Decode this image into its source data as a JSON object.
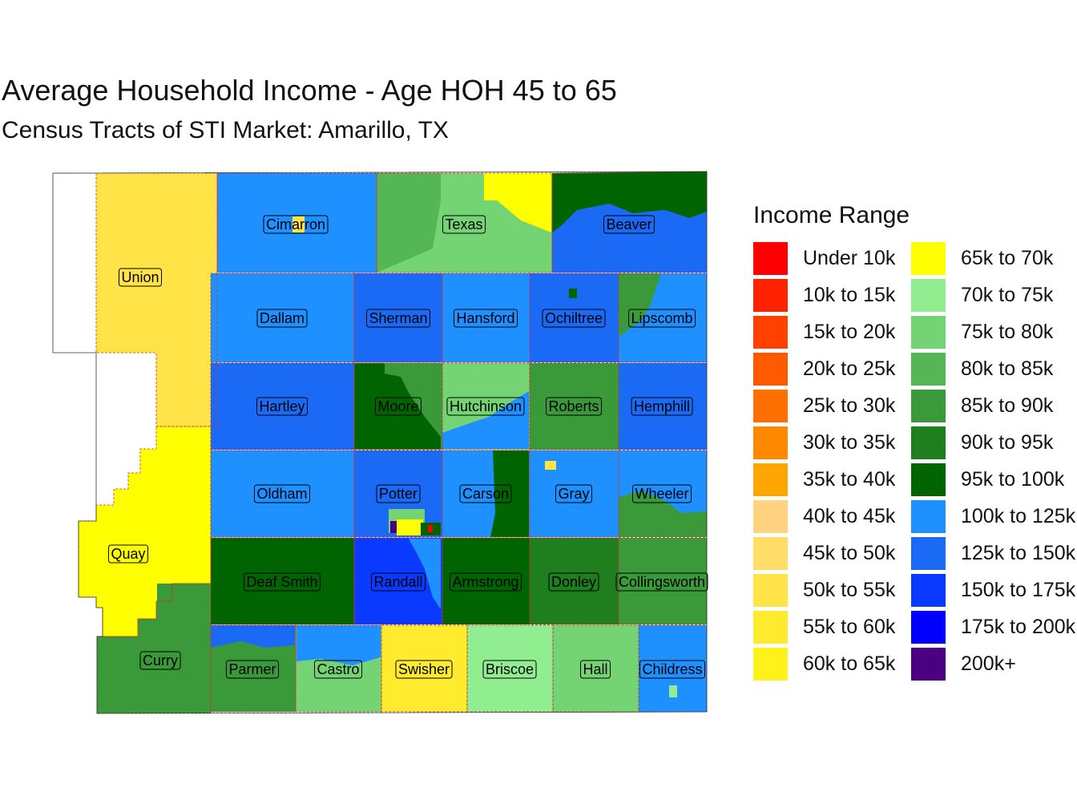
{
  "title": "Average Household Income - Age HOH 45 to 65",
  "subtitle": "Census Tracts of STI Market: Amarillo, TX",
  "legend": {
    "title": "Income Range",
    "items": [
      {
        "label": "Under 10k",
        "color": "#FF0000"
      },
      {
        "label": "10k to 15k",
        "color": "#FF2200"
      },
      {
        "label": "15k to 20k",
        "color": "#FF4000"
      },
      {
        "label": "20k to 25k",
        "color": "#FF5A00"
      },
      {
        "label": "25k to 30k",
        "color": "#FF7000"
      },
      {
        "label": "30k to 35k",
        "color": "#FF8800"
      },
      {
        "label": "35k to 40k",
        "color": "#FFA500"
      },
      {
        "label": "40k to 45k",
        "color": "#FFD37F"
      },
      {
        "label": "45k to 50k",
        "color": "#FFDD66"
      },
      {
        "label": "50k to 55k",
        "color": "#FFE347"
      },
      {
        "label": "55k to 60k",
        "color": "#FFEB2E"
      },
      {
        "label": "60k to 65k",
        "color": "#FFF21A"
      },
      {
        "label": "65k to 70k",
        "color": "#FFFF00"
      },
      {
        "label": "70k to 75k",
        "color": "#90EE90"
      },
      {
        "label": "75k to 80k",
        "color": "#74D474"
      },
      {
        "label": "80k to 85k",
        "color": "#55B655"
      },
      {
        "label": "85k to 90k",
        "color": "#3A9A3A"
      },
      {
        "label": "90k to 95k",
        "color": "#1F7F1F"
      },
      {
        "label": "95k to 100k",
        "color": "#006400"
      },
      {
        "label": "100k to 125k",
        "color": "#1E90FF"
      },
      {
        "label": "125k to 150k",
        "color": "#1A6AF5"
      },
      {
        "label": "150k to 175k",
        "color": "#0A3AFF"
      },
      {
        "label": "175k to 200k",
        "color": "#0000FF"
      },
      {
        "label": "200k+",
        "color": "#4B0082"
      }
    ]
  },
  "counties": [
    {
      "name": "Union",
      "color": "#FFE347"
    },
    {
      "name": "Cimarron",
      "color": "#1E90FF"
    },
    {
      "name": "Texas",
      "color": "#74D474"
    },
    {
      "name": "Beaver",
      "color": "#1A6AF5"
    },
    {
      "name": "Dallam",
      "color": "#1E90FF"
    },
    {
      "name": "Sherman",
      "color": "#1A6AF5"
    },
    {
      "name": "Hansford",
      "color": "#1E90FF"
    },
    {
      "name": "Ochiltree",
      "color": "#1A6AF5"
    },
    {
      "name": "Lipscomb",
      "color": "#1E90FF"
    },
    {
      "name": "Hartley",
      "color": "#1A6AF5"
    },
    {
      "name": "Moore",
      "color": "#3A9A3A"
    },
    {
      "name": "Hutchinson",
      "color": "#74D474"
    },
    {
      "name": "Roberts",
      "color": "#3A9A3A"
    },
    {
      "name": "Hemphill",
      "color": "#1A6AF5"
    },
    {
      "name": "Quay",
      "color": "#FFFF00"
    },
    {
      "name": "Oldham",
      "color": "#1E90FF"
    },
    {
      "name": "Potter",
      "color": "#1A6AF5"
    },
    {
      "name": "Carson",
      "color": "#1E90FF"
    },
    {
      "name": "Gray",
      "color": "#1E90FF"
    },
    {
      "name": "Wheeler",
      "color": "#1E90FF"
    },
    {
      "name": "Deaf Smith",
      "color": "#006400"
    },
    {
      "name": "Randall",
      "color": "#0A3AFF"
    },
    {
      "name": "Armstrong",
      "color": "#006400"
    },
    {
      "name": "Donley",
      "color": "#1F7F1F"
    },
    {
      "name": "Collingsworth",
      "color": "#3A9A3A"
    },
    {
      "name": "Curry",
      "color": "#3A9A3A"
    },
    {
      "name": "Parmer",
      "color": "#3A9A3A"
    },
    {
      "name": "Castro",
      "color": "#74D474"
    },
    {
      "name": "Swisher",
      "color": "#FFEB2E"
    },
    {
      "name": "Briscoe",
      "color": "#90EE90"
    },
    {
      "name": "Hall",
      "color": "#74D474"
    },
    {
      "name": "Childress",
      "color": "#1E90FF"
    }
  ]
}
